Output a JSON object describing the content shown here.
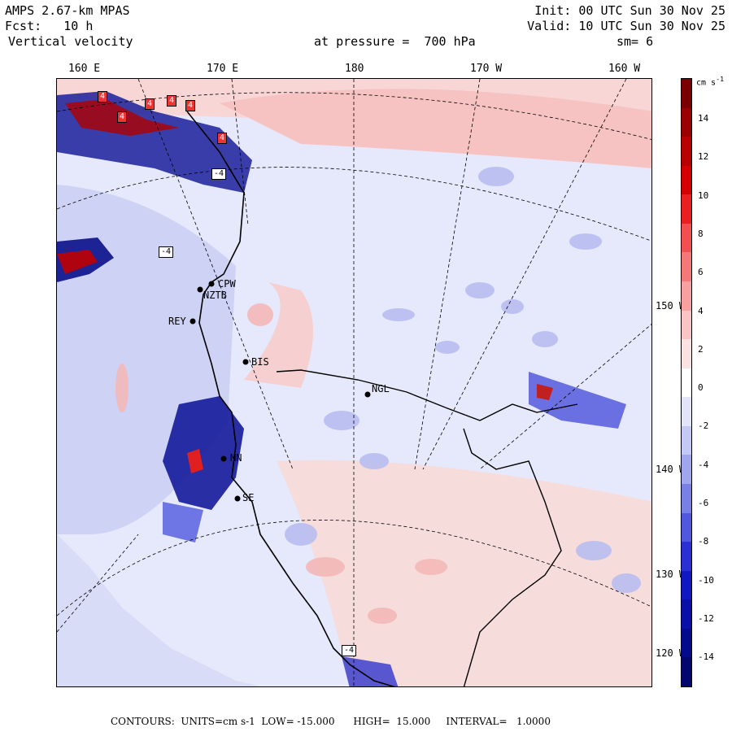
{
  "header": {
    "model": "AMPS 2.67-km MPAS",
    "forecast": "Fcst:   10 h",
    "field": "Vertical velocity",
    "init": "Init: 00 UTC Sun 30 Nov 25",
    "valid": "Valid: 10 UTC Sun 30 Nov 25",
    "pressure": "at pressure =  700 hPa",
    "smoothing": "sm= 6"
  },
  "longitude_labels": [
    "160 E",
    "170 E",
    "180",
    "170 W",
    "160 W"
  ],
  "latitude_labels": [
    "150 W",
    "140 W",
    "130 W",
    "120 W"
  ],
  "stations": [
    "CPW",
    "NZTB",
    "REY",
    "BIS",
    "NGL",
    "MN",
    "SE"
  ],
  "contour_boxes": [
    "4",
    "4",
    "4",
    "4",
    "4",
    "4",
    "-4",
    "-4",
    "-4"
  ],
  "colorbar": {
    "unit": "cm s",
    "unit_exp": "-1",
    "ticks": [
      "14",
      "12",
      "10",
      "8",
      "6",
      "4",
      "2",
      "0",
      "-2",
      "-4",
      "-6",
      "-8",
      "-10",
      "-12",
      "-14"
    ],
    "colors": [
      "#7a0000",
      "#9a0000",
      "#b80000",
      "#d40000",
      "#ea2020",
      "#f25050",
      "#f47878",
      "#f6a0a0",
      "#f8c4c4",
      "#fae2e2",
      "#ffffff",
      "#e2e4fa",
      "#c4c8f4",
      "#a0a6ee",
      "#7880e6",
      "#5058de",
      "#2a30d4",
      "#1018c4",
      "#0810a8",
      "#040a8c",
      "#02066e"
    ]
  },
  "footer": "CONTOURS:  UNITS=cm s-1  LOW= -15.000      HIGH=  15.000     INTERVAL=   1.0000"
}
